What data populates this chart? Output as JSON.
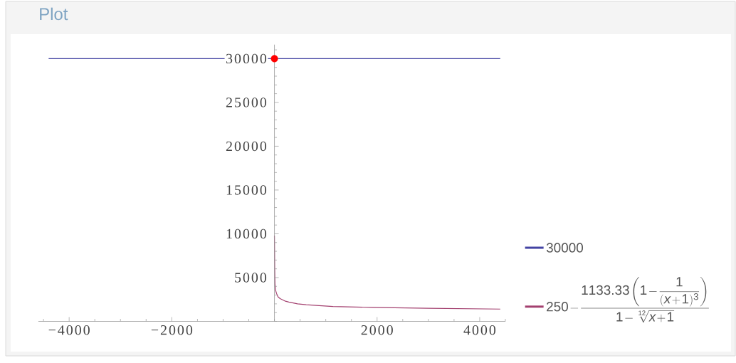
{
  "chart_data": {
    "type": "line",
    "title": "Plot",
    "xlim": [
      -4600,
      4500
    ],
    "ylim": [
      0,
      31600
    ],
    "xticks": [
      {
        "value": -4000,
        "label": "−4000"
      },
      {
        "value": -2000,
        "label": "−2000"
      },
      2000,
      4000
    ],
    "yticks": [
      5000,
      10000,
      15000,
      20000,
      25000,
      30000
    ],
    "legend": "right",
    "marker": "none",
    "line_style": "solid",
    "series": [
      {
        "name": "30000",
        "color": "#4343a3",
        "x": [
          -4400,
          4400
        ],
        "values": [
          30000,
          30000
        ]
      },
      {
        "name": "250-\\frac{1133.33\\left(1-\\dfrac{1}{(x+1)^{3}}\\right)}{1-\\sqrt[12]{x+1}}",
        "color": "#a3406f",
        "x": [
          0,
          5,
          10,
          20,
          40,
          70,
          110,
          215,
          280,
          450,
          620,
          870,
          1140,
          1900,
          3000,
          4400
        ],
        "values": [
          9800,
          6000,
          4300,
          3600,
          3200,
          2800,
          2600,
          2300,
          2200,
          2000,
          1900,
          1800,
          1700,
          1600,
          1500,
          1400
        ]
      },
      {
        "type": "scatter",
        "marker": "circle",
        "color": "#ff0000",
        "x": [
          0
        ],
        "values": [
          30000
        ]
      }
    ]
  }
}
